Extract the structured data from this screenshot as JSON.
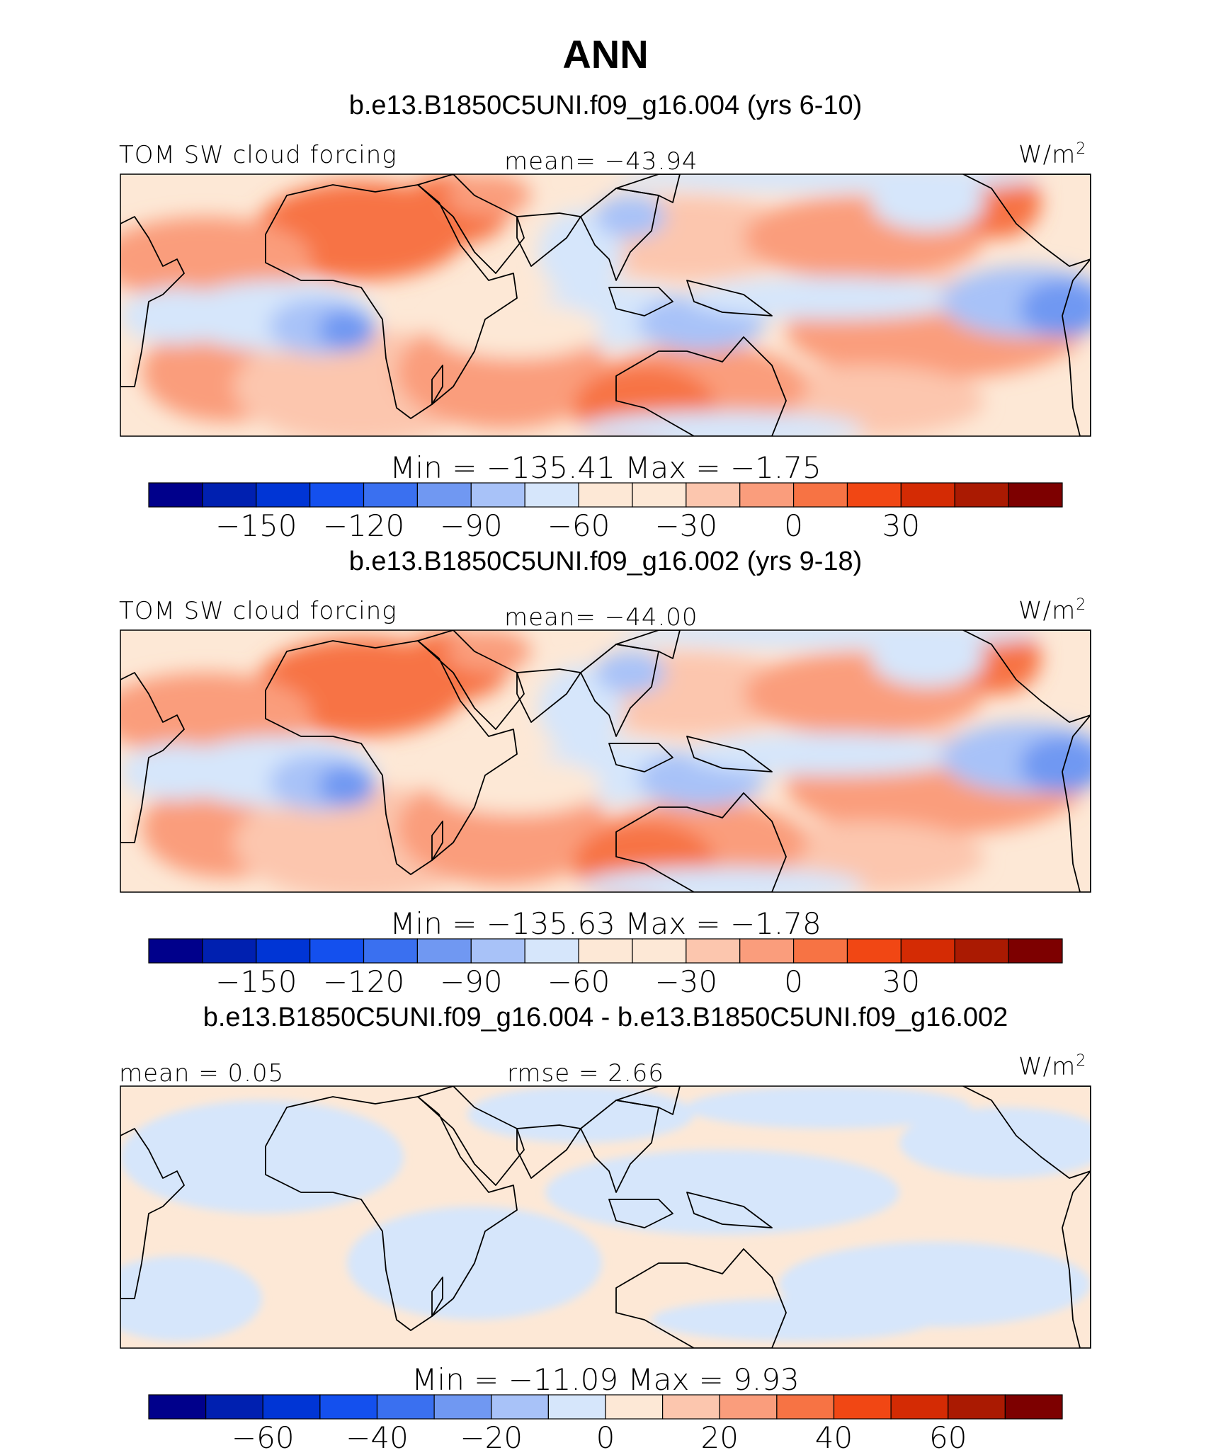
{
  "figure": {
    "title": "ANN"
  },
  "colors": {
    "ocean_text": "#000000",
    "land_outline": "#000000",
    "palette": [
      "#00008b",
      "#0020b0",
      "#0035d5",
      "#1450ee",
      "#3a70f0",
      "#7098f2",
      "#a8c2f8",
      "#d6e6fb",
      "#fde8d6",
      "#fcc6ae",
      "#fa9d7c",
      "#f77344",
      "#f14714",
      "#d42b04",
      "#aa1a02",
      "#7d0000"
    ]
  },
  "panels": [
    {
      "title": "b.e13.B1850C5UNI.f09_g16.004 (yrs 6-10)",
      "variable": "TOM SW cloud forcing",
      "stat_text": "mean= −43.94",
      "units": "W/m",
      "units_sup": "2",
      "minmax_text": "Min  = −135.41  Max  =   −1.75",
      "colorbar_ticks": [
        "−150",
        "−120",
        "−90",
        "−60",
        "−30",
        "0",
        "30"
      ]
    },
    {
      "title": "b.e13.B1850C5UNI.f09_g16.002 (yrs 9-18)",
      "variable": "TOM SW cloud forcing",
      "stat_text": "mean= −44.00",
      "units": "W/m",
      "units_sup": "2",
      "minmax_text": "Min  = −135.63  Max  =   −1.78",
      "colorbar_ticks": [
        "−150",
        "−120",
        "−90",
        "−60",
        "−30",
        "0",
        "30"
      ]
    },
    {
      "title": "b.e13.B1850C5UNI.f09_g16.004 - b.e13.B1850C5UNI.f09_g16.002",
      "left_text": "mean  =    0.05",
      "stat_text": "rmse  =    2.66",
      "units": "W/m",
      "units_sup": "2",
      "minmax_text": "Min  = −11.09  Max  =     9.93",
      "colorbar_ticks": [
        "−60",
        "−40",
        "−20",
        "0",
        "20",
        "40",
        "60"
      ]
    }
  ],
  "chart_data": [
    {
      "type": "heatmap",
      "title": "b.e13.B1850C5UNI.f09_g16.004 (yrs 6-10)",
      "variable": "TOM SW cloud forcing",
      "units": "W/m2",
      "mean": -43.94,
      "min": -135.41,
      "max": -1.75,
      "colorbar_levels": [
        -165,
        -150,
        -135,
        -120,
        -105,
        -90,
        -75,
        -60,
        -45,
        -30,
        -15,
        0,
        15,
        30,
        45,
        60
      ],
      "colorbar_ticks": [
        -150,
        -120,
        -90,
        -60,
        -30,
        0,
        30
      ]
    },
    {
      "type": "heatmap",
      "title": "b.e13.B1850C5UNI.f09_g16.002 (yrs 9-18)",
      "variable": "TOM SW cloud forcing",
      "units": "W/m2",
      "mean": -44.0,
      "min": -135.63,
      "max": -1.78,
      "colorbar_levels": [
        -165,
        -150,
        -135,
        -120,
        -105,
        -90,
        -75,
        -60,
        -45,
        -30,
        -15,
        0,
        15,
        30,
        45,
        60
      ],
      "colorbar_ticks": [
        -150,
        -120,
        -90,
        -60,
        -30,
        0,
        30
      ]
    },
    {
      "type": "heatmap",
      "title": "b.e13.B1850C5UNI.f09_g16.004 - b.e13.B1850C5UNI.f09_g16.002",
      "units": "W/m2",
      "mean": 0.05,
      "rmse": 2.66,
      "min": -11.09,
      "max": 9.93,
      "colorbar_levels": [
        -70,
        -60,
        -50,
        -40,
        -30,
        -20,
        -10,
        0,
        10,
        20,
        30,
        40,
        50,
        60,
        70
      ],
      "colorbar_ticks": [
        -60,
        -40,
        -20,
        0,
        20,
        40,
        60
      ]
    }
  ]
}
